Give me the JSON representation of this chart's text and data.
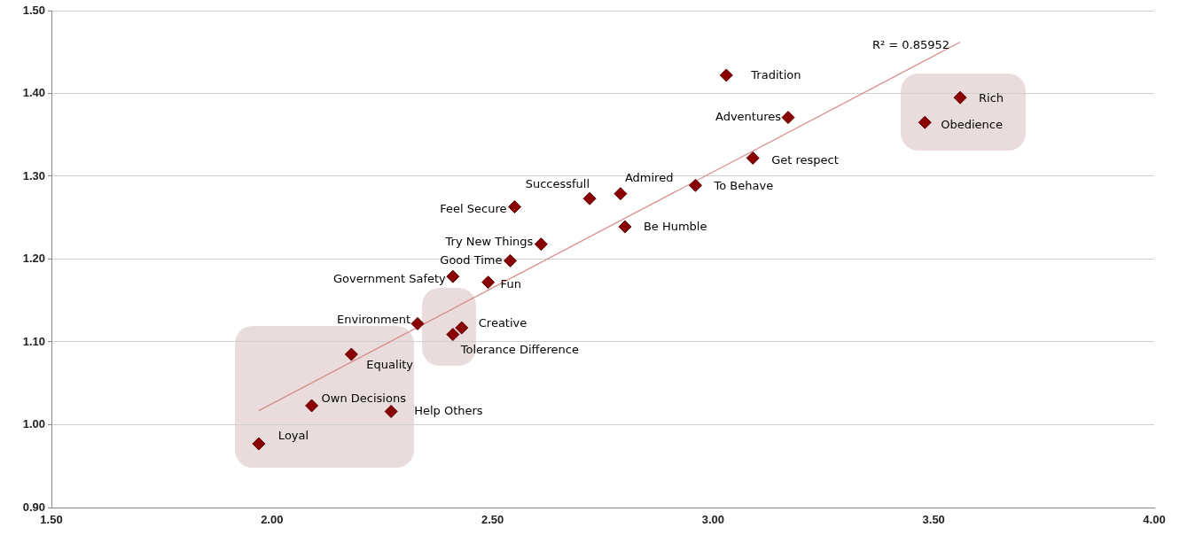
{
  "chart_data": {
    "type": "scatter",
    "marker": "diamond",
    "grid": "y",
    "legend": false,
    "xlim": [
      1.5,
      4.0
    ],
    "xticks": [
      {
        "value": 1.5,
        "label": "1.50"
      },
      {
        "value": 2.0,
        "label": "2.00"
      },
      {
        "value": 2.5,
        "label": "2.50"
      },
      {
        "value": 3.0,
        "label": "3.00"
      },
      {
        "value": 3.5,
        "label": "3.50"
      },
      {
        "value": 4.0,
        "label": "4.00"
      }
    ],
    "ylim": [
      0.9,
      1.5
    ],
    "yticks": [
      {
        "value": 0.9,
        "label": "0.90"
      },
      {
        "value": 1.0,
        "label": "1.00"
      },
      {
        "value": 1.1,
        "label": "1.10"
      },
      {
        "value": 1.2,
        "label": "1.20"
      },
      {
        "value": 1.3,
        "label": "1.30"
      },
      {
        "value": 1.4,
        "label": "1.40"
      },
      {
        "value": 1.5,
        "label": "1.50"
      }
    ],
    "annotations": [
      {
        "text": "R² = 0.85952",
        "x": 3.56,
        "y": 1.46
      }
    ],
    "series": [
      {
        "name": "Loyal",
        "color": "#8b0000",
        "x": [
          1.97
        ],
        "values": [
          0.977
        ]
      },
      {
        "name": "Own Decisions",
        "color": "#8b0000",
        "x": [
          2.09
        ],
        "values": [
          1.023
        ]
      },
      {
        "name": "Equality",
        "color": "#8b0000",
        "x": [
          2.18
        ],
        "values": [
          1.085
        ]
      },
      {
        "name": "Help Others",
        "color": "#8b0000",
        "x": [
          2.27
        ],
        "values": [
          1.016
        ]
      },
      {
        "name": "Environment",
        "color": "#8b0000",
        "x": [
          2.33
        ],
        "values": [
          1.122
        ]
      },
      {
        "name": "Tolerance Difference",
        "color": "#8b0000",
        "x": [
          2.41
        ],
        "values": [
          1.109
        ]
      },
      {
        "name": "Creative",
        "color": "#8b0000",
        "x": [
          2.43
        ],
        "values": [
          1.117
        ]
      },
      {
        "name": "Government Safety",
        "color": "#8b0000",
        "x": [
          2.41
        ],
        "values": [
          1.179
        ]
      },
      {
        "name": "Fun",
        "color": "#8b0000",
        "x": [
          2.49
        ],
        "values": [
          1.172
        ]
      },
      {
        "name": "Good Time",
        "color": "#8b0000",
        "x": [
          2.54
        ],
        "values": [
          1.198
        ]
      },
      {
        "name": "Try New Things",
        "color": "#8b0000",
        "x": [
          2.61
        ],
        "values": [
          1.218
        ]
      },
      {
        "name": "Feel Secure",
        "color": "#8b0000",
        "x": [
          2.55
        ],
        "values": [
          1.263
        ]
      },
      {
        "name": "Successfull",
        "color": "#8b0000",
        "x": [
          2.72
        ],
        "values": [
          1.273
        ]
      },
      {
        "name": "Admired",
        "color": "#8b0000",
        "x": [
          2.79
        ],
        "values": [
          1.279
        ]
      },
      {
        "name": "Be Humble",
        "color": "#8b0000",
        "x": [
          2.8
        ],
        "values": [
          1.239
        ]
      },
      {
        "name": "To Behave",
        "color": "#8b0000",
        "x": [
          2.96
        ],
        "values": [
          1.289
        ]
      },
      {
        "name": "Get respect",
        "color": "#8b0000",
        "x": [
          3.09
        ],
        "values": [
          1.322
        ]
      },
      {
        "name": "Adventures",
        "color": "#8b0000",
        "x": [
          3.17
        ],
        "values": [
          1.371
        ]
      },
      {
        "name": "Tradition",
        "color": "#8b0000",
        "x": [
          3.03
        ],
        "values": [
          1.422
        ]
      },
      {
        "name": "Obedience",
        "color": "#8b0000",
        "x": [
          3.48
        ],
        "values": [
          1.365
        ]
      },
      {
        "name": "Rich",
        "color": "#8b0000",
        "x": [
          3.56
        ],
        "values": [
          1.395
        ]
      },
      {
        "type": "line",
        "color": "#d98c8c",
        "marker": "none",
        "x": [
          1.97,
          3.56
        ],
        "values": [
          1.017,
          1.462
        ]
      }
    ]
  }
}
